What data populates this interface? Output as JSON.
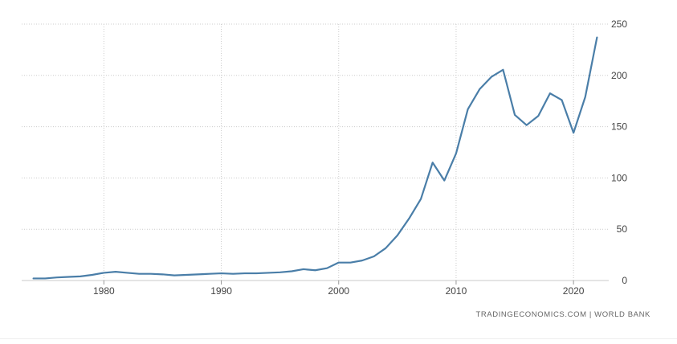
{
  "chart_data": {
    "type": "line",
    "title": "",
    "xlabel": "",
    "ylabel": "",
    "xlim": [
      1973,
      2023
    ],
    "ylim": [
      0,
      250
    ],
    "x_ticks": [
      1980,
      1990,
      2000,
      2010,
      2020
    ],
    "y_ticks": [
      0,
      50,
      100,
      150,
      200,
      250
    ],
    "grid": true,
    "y_axis_side": "right",
    "line_color": "#4a7ea8",
    "grid_color": "#cccccc",
    "series": [
      {
        "x": [
          1974,
          1975,
          1976,
          1977,
          1978,
          1979,
          1980,
          1981,
          1982,
          1983,
          1984,
          1985,
          1986,
          1987,
          1988,
          1989,
          1990,
          1991,
          1992,
          1993,
          1994,
          1995,
          1996,
          1997,
          1998,
          1999,
          2000,
          2001,
          2002,
          2003,
          2004,
          2005,
          2006,
          2007,
          2008,
          2009,
          2010,
          2011,
          2012,
          2013,
          2014,
          2015,
          2016,
          2017,
          2018,
          2019,
          2020,
          2021,
          2022
        ],
        "values": [
          2,
          2,
          3,
          3.5,
          4,
          5.5,
          7.5,
          8.5,
          7.5,
          6.5,
          6.5,
          6,
          5,
          5.5,
          6,
          6.5,
          7,
          6.5,
          7,
          7,
          7.5,
          8,
          9,
          11,
          10,
          12,
          17.5,
          17.5,
          19.5,
          23.5,
          31.5,
          44,
          60.5,
          79.5,
          115,
          97.5,
          124,
          167,
          186.5,
          198.5,
          205.5,
          161.5,
          151.5,
          160.5,
          182.5,
          176,
          144,
          179,
          237
        ]
      }
    ]
  },
  "source_text": "TRADINGECONOMICS.COM  |  WORLD BANK"
}
